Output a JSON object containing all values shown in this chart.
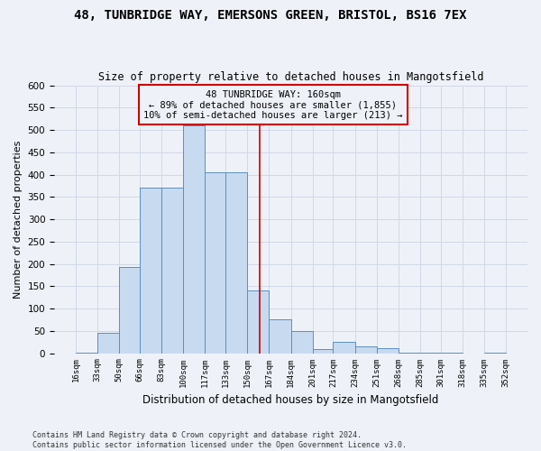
{
  "title1": "48, TUNBRIDGE WAY, EMERSONS GREEN, BRISTOL, BS16 7EX",
  "title2": "Size of property relative to detached houses in Mangotsfield",
  "xlabel": "Distribution of detached houses by size in Mangotsfield",
  "ylabel": "Number of detached properties",
  "footer1": "Contains HM Land Registry data © Crown copyright and database right 2024.",
  "footer2": "Contains public sector information licensed under the Open Government Licence v3.0.",
  "annotation_line1": "48 TUNBRIDGE WAY: 160sqm",
  "annotation_line2": "← 89% of detached houses are smaller (1,855)",
  "annotation_line3": "10% of semi-detached houses are larger (213) →",
  "property_size": 160,
  "bar_edges": [
    16,
    33,
    50,
    66,
    83,
    100,
    117,
    133,
    150,
    167,
    184,
    201,
    217,
    234,
    251,
    268,
    285,
    301,
    318,
    335,
    352
  ],
  "bar_heights": [
    2,
    45,
    193,
    370,
    370,
    510,
    405,
    405,
    140,
    75,
    50,
    10,
    25,
    15,
    12,
    1,
    1,
    1,
    0,
    1
  ],
  "bar_color": "#c8daf0",
  "bar_edge_color": "#5a8fc0",
  "vline_x": 160,
  "vline_color": "#cc0000",
  "annotation_box_color": "#cc0000",
  "grid_color": "#d0d8e8",
  "background_color": "#eef2f8",
  "ylim": [
    0,
    600
  ],
  "yticks": [
    0,
    50,
    100,
    150,
    200,
    250,
    300,
    350,
    400,
    450,
    500,
    550,
    600
  ]
}
